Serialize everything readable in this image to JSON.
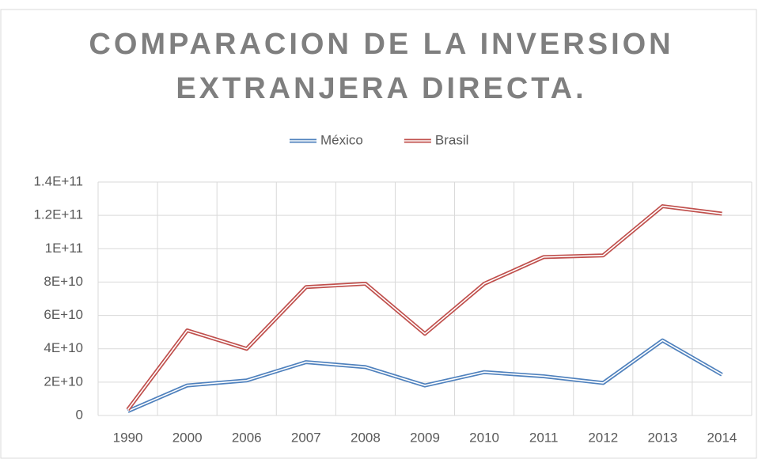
{
  "chart_data": {
    "type": "line",
    "title": [
      "COMPARACION DE LA INVERSION",
      "EXTRANJERA DIRECTA."
    ],
    "categories": [
      "1990",
      "2000",
      "2006",
      "2007",
      "2008",
      "2009",
      "2010",
      "2011",
      "2012",
      "2013",
      "2014"
    ],
    "series": [
      {
        "name": "México",
        "color": "#4f81bd",
        "values": [
          2600000000,
          18000000000,
          21000000000,
          32000000000,
          29000000000,
          18000000000,
          26000000000,
          23500000000,
          19500000000,
          45000000000,
          24500000000
        ]
      },
      {
        "name": "Brasil",
        "color": "#c0504d",
        "values": [
          3500000000,
          51000000000,
          40000000000,
          77000000000,
          79000000000,
          49000000000,
          79000000000,
          95000000000,
          96000000000,
          125500000000,
          121000000000
        ]
      }
    ],
    "ylim": [
      0,
      140000000000
    ],
    "yticks": [
      0,
      {
        "value": 20000000000,
        "label": "2E+10"
      },
      {
        "value": 40000000000,
        "label": "4E+10"
      },
      {
        "value": 60000000000,
        "label": "6E+10"
      },
      {
        "value": 80000000000,
        "label": "8E+10"
      },
      {
        "value": 100000000000,
        "label": "1E+11"
      },
      {
        "value": 120000000000,
        "label": "1.2E+11"
      },
      {
        "value": 140000000000,
        "label": "1.4E+11"
      }
    ],
    "grid": true,
    "legend": "top"
  }
}
